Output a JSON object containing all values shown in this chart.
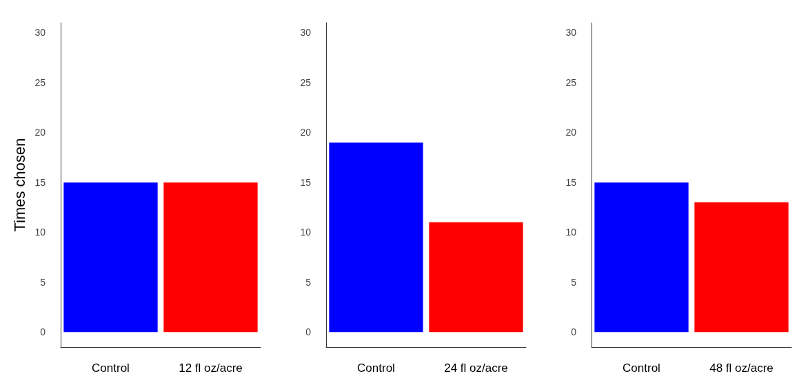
{
  "chart_data": [
    {
      "type": "bar",
      "ylabel": "Times chosen",
      "categories": [
        "Control",
        "12 fl oz/acre"
      ],
      "values": [
        15,
        15
      ],
      "colors": [
        "#0000ff",
        "#ff0000"
      ],
      "ylim": [
        -1.5,
        31
      ],
      "yticks": [
        0,
        5,
        10,
        15,
        20,
        25,
        30
      ]
    },
    {
      "type": "bar",
      "categories": [
        "Control",
        "24 fl oz/acre"
      ],
      "values": [
        19,
        11
      ],
      "colors": [
        "#0000ff",
        "#ff0000"
      ],
      "ylim": [
        -1.5,
        31
      ],
      "yticks": [
        0,
        5,
        10,
        15,
        20,
        25,
        30
      ]
    },
    {
      "type": "bar",
      "categories": [
        "Control",
        "48 fl oz/acre"
      ],
      "values": [
        15,
        13
      ],
      "colors": [
        "#0000ff",
        "#ff0000"
      ],
      "ylim": [
        -1.5,
        31
      ],
      "yticks": [
        0,
        5,
        10,
        15,
        20,
        25,
        30
      ]
    }
  ]
}
